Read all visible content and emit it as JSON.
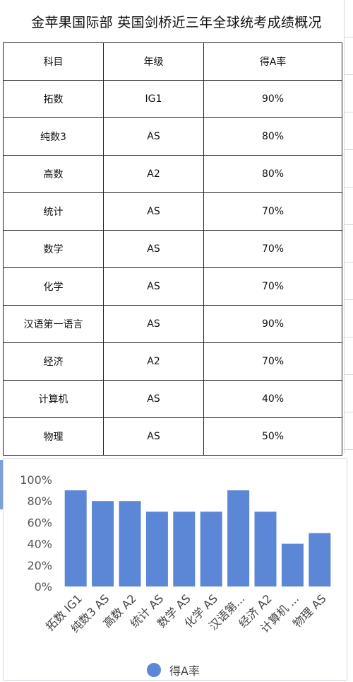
{
  "title": "金苹果国际部 英国剑桥近三年全球统考成绩概况",
  "table": {
    "headers": [
      "科目",
      "年级",
      "得A率"
    ],
    "rows": [
      [
        "拓数",
        "IG1",
        "90%"
      ],
      [
        "纯数3",
        "AS",
        "80%"
      ],
      [
        "高数",
        "A2",
        "80%"
      ],
      [
        "统计",
        "AS",
        "70%"
      ],
      [
        "数学",
        "AS",
        "70%"
      ],
      [
        "化学",
        "AS",
        "70%"
      ],
      [
        "汉语第一语言",
        "AS",
        "90%"
      ],
      [
        "经济",
        "A2",
        "70%"
      ],
      [
        "计算机",
        "AS",
        "40%"
      ],
      [
        "物理",
        "AS",
        "50%"
      ]
    ]
  },
  "chart_data": {
    "type": "bar",
    "categories": [
      "拓数 IG1",
      "纯数3 AS",
      "高数 A2",
      "统计 AS",
      "数学 AS",
      "化学 AS",
      "汉语第...",
      "经济 A2",
      "计算机 ...",
      "物理 AS"
    ],
    "series": [
      {
        "name": "得A率",
        "values": [
          90,
          80,
          80,
          70,
          70,
          70,
          90,
          70,
          40,
          50
        ],
        "color": "#5b87d6"
      }
    ],
    "yticks": [
      "0%",
      "20%",
      "40%",
      "60%",
      "80%",
      "100%"
    ],
    "ylim": [
      0,
      100
    ],
    "grid": false,
    "legend": "bottom"
  }
}
